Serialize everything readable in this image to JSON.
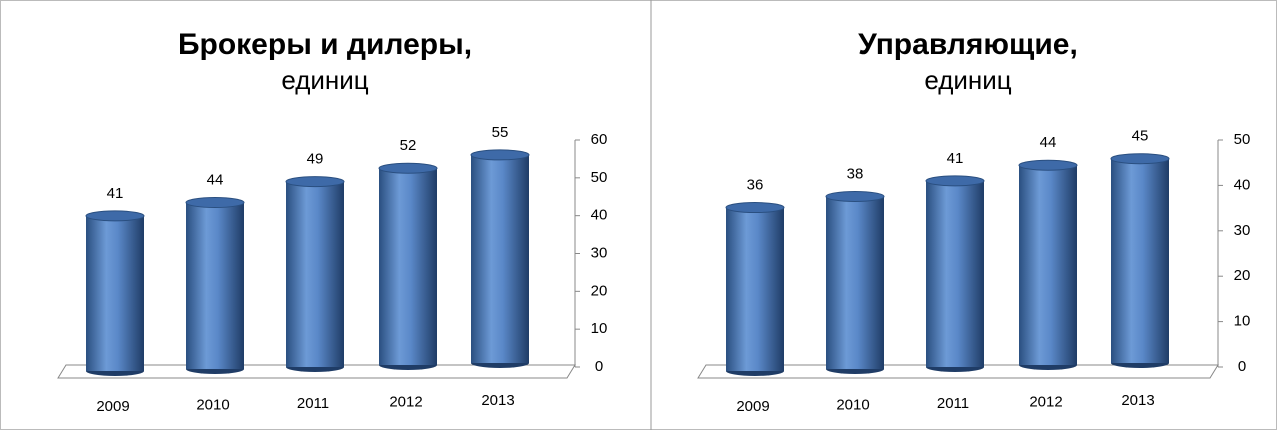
{
  "chart_data": [
    {
      "type": "bar",
      "title": "Брокеры и дилеры,",
      "subtitle": "единиц",
      "categories": [
        "2009",
        "2010",
        "2011",
        "2012",
        "2013"
      ],
      "values": [
        41,
        44,
        49,
        52,
        55
      ],
      "color": "#4f81bd",
      "ylim": [
        0,
        60
      ],
      "yticks": [
        0,
        10,
        20,
        30,
        40,
        50,
        60
      ],
      "grid": false
    },
    {
      "type": "bar",
      "title": "Управляющие,",
      "subtitle": "единиц",
      "categories": [
        "2009",
        "2010",
        "2011",
        "2012",
        "2013"
      ],
      "values": [
        36,
        38,
        41,
        44,
        45
      ],
      "color": "#4f81bd",
      "ylim": [
        0,
        50
      ],
      "yticks": [
        0,
        10,
        20,
        30,
        40,
        50
      ],
      "grid": false
    }
  ]
}
